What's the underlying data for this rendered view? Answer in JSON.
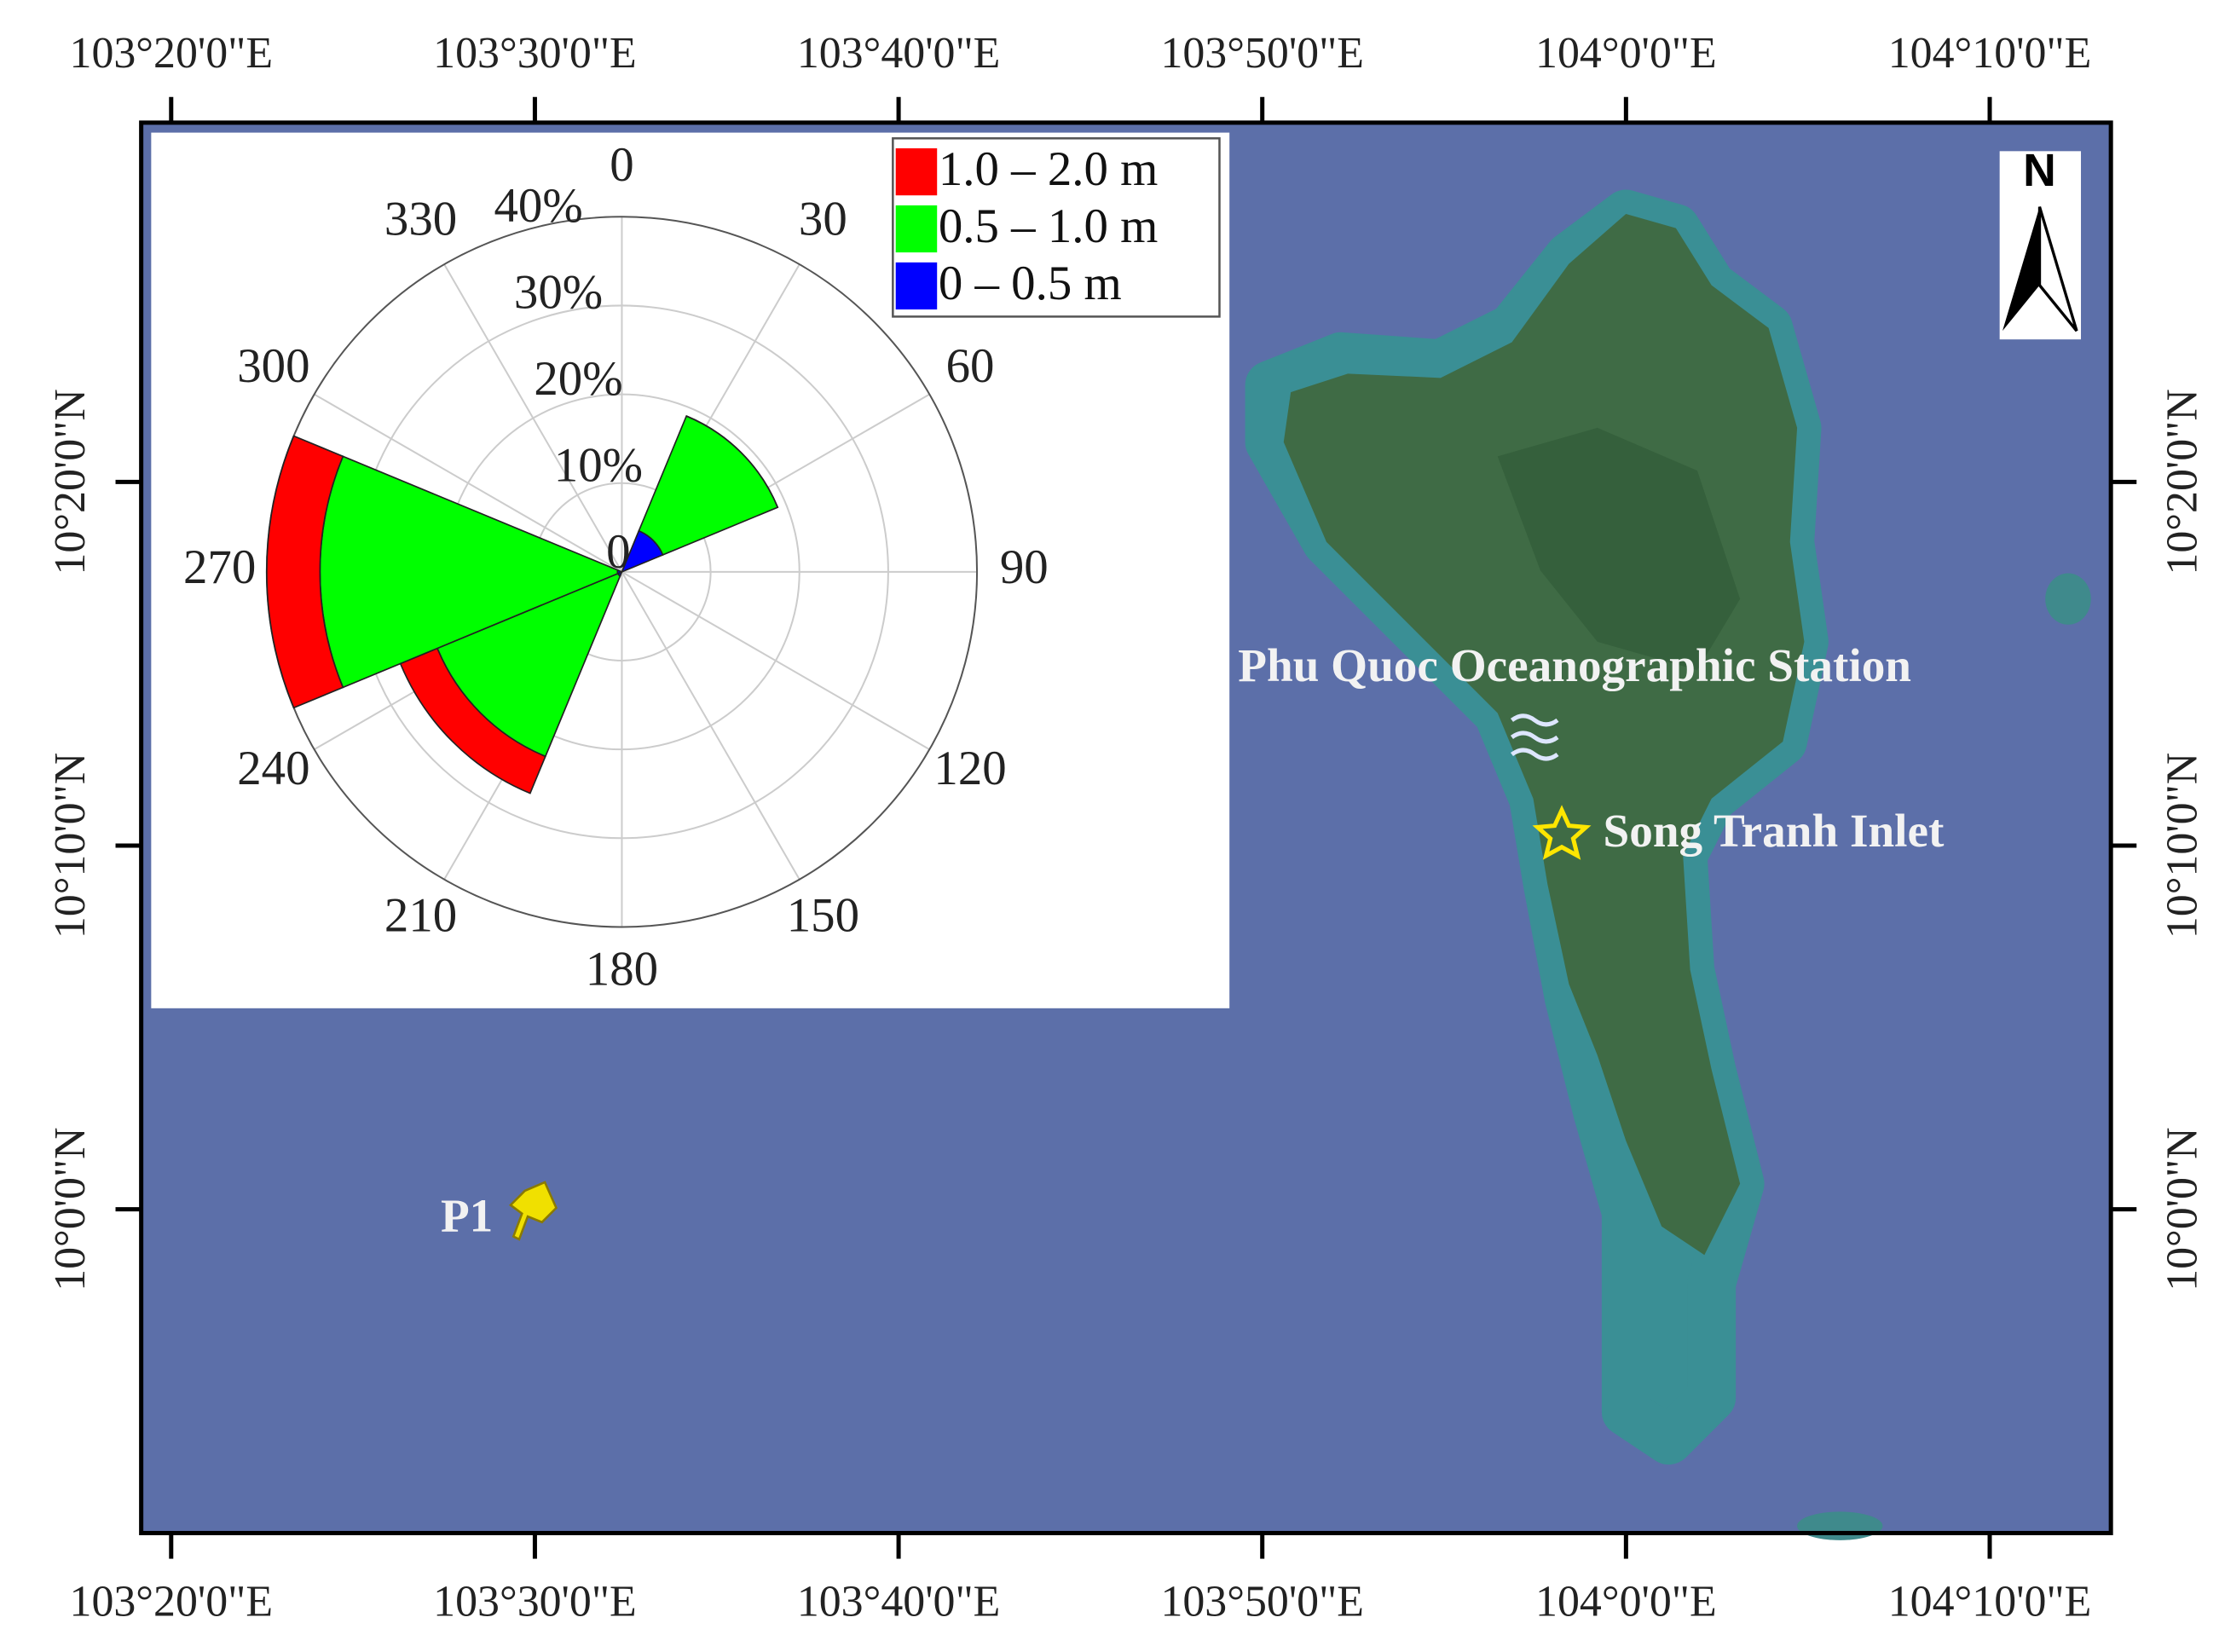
{
  "chart_data": {
    "type": "map",
    "xlim": [
      103.3196,
      104.2222
    ],
    "ylim": [
      9.8516,
      10.498
    ],
    "xticks": [
      {
        "value": 103.33333,
        "label": "103°20'0\"E"
      },
      {
        "value": 103.5,
        "label": "103°30'0\"E"
      },
      {
        "value": 103.66667,
        "label": "103°40'0\"E"
      },
      {
        "value": 103.83333,
        "label": "103°50'0\"E"
      },
      {
        "value": 104.0,
        "label": "104°0'0\"E"
      },
      {
        "value": 104.16667,
        "label": "104°10'0\"E"
      }
    ],
    "yticks": [
      {
        "value": 10.33333,
        "label": "10°20'0\"N"
      },
      {
        "value": 10.16667,
        "label": "10°10'0\"N"
      },
      {
        "value": 10.0,
        "label": "10°0'0\"N"
      }
    ],
    "places": [
      "Phu Quoc Oceanographic Station",
      "Song Tranh Inlet",
      "P1"
    ],
    "north_label": "N",
    "inset": {
      "type": "rose",
      "directions": [
        0,
        45,
        90,
        135,
        180,
        225,
        270,
        315
      ],
      "rlim": [
        0,
        40
      ],
      "rticks": [
        0,
        {
          "value": 10,
          "label": "10%"
        },
        {
          "value": 20,
          "label": "20%"
        },
        {
          "value": 30,
          "label": "30%"
        },
        {
          "value": 40,
          "label": "40%"
        }
      ],
      "angle_ticks": [
        0,
        30,
        60,
        90,
        120,
        150,
        180,
        210,
        240,
        270,
        300,
        330
      ],
      "series": [
        {
          "name": "1.0 – 2.0 m",
          "color": "#ff0000",
          "values": [
            0,
            0,
            0,
            0,
            0,
            4.5,
            6,
            0
          ]
        },
        {
          "name": "0.5 – 1.0 m",
          "color": "#00ff00",
          "values": [
            0,
            14,
            0,
            0,
            0,
            22,
            33.5,
            0
          ]
        },
        {
          "name": "0 – 0.5 m",
          "color": "#0000ff",
          "values": [
            0,
            5,
            0,
            0,
            0,
            0.5,
            0.5,
            0
          ]
        }
      ]
    }
  }
}
